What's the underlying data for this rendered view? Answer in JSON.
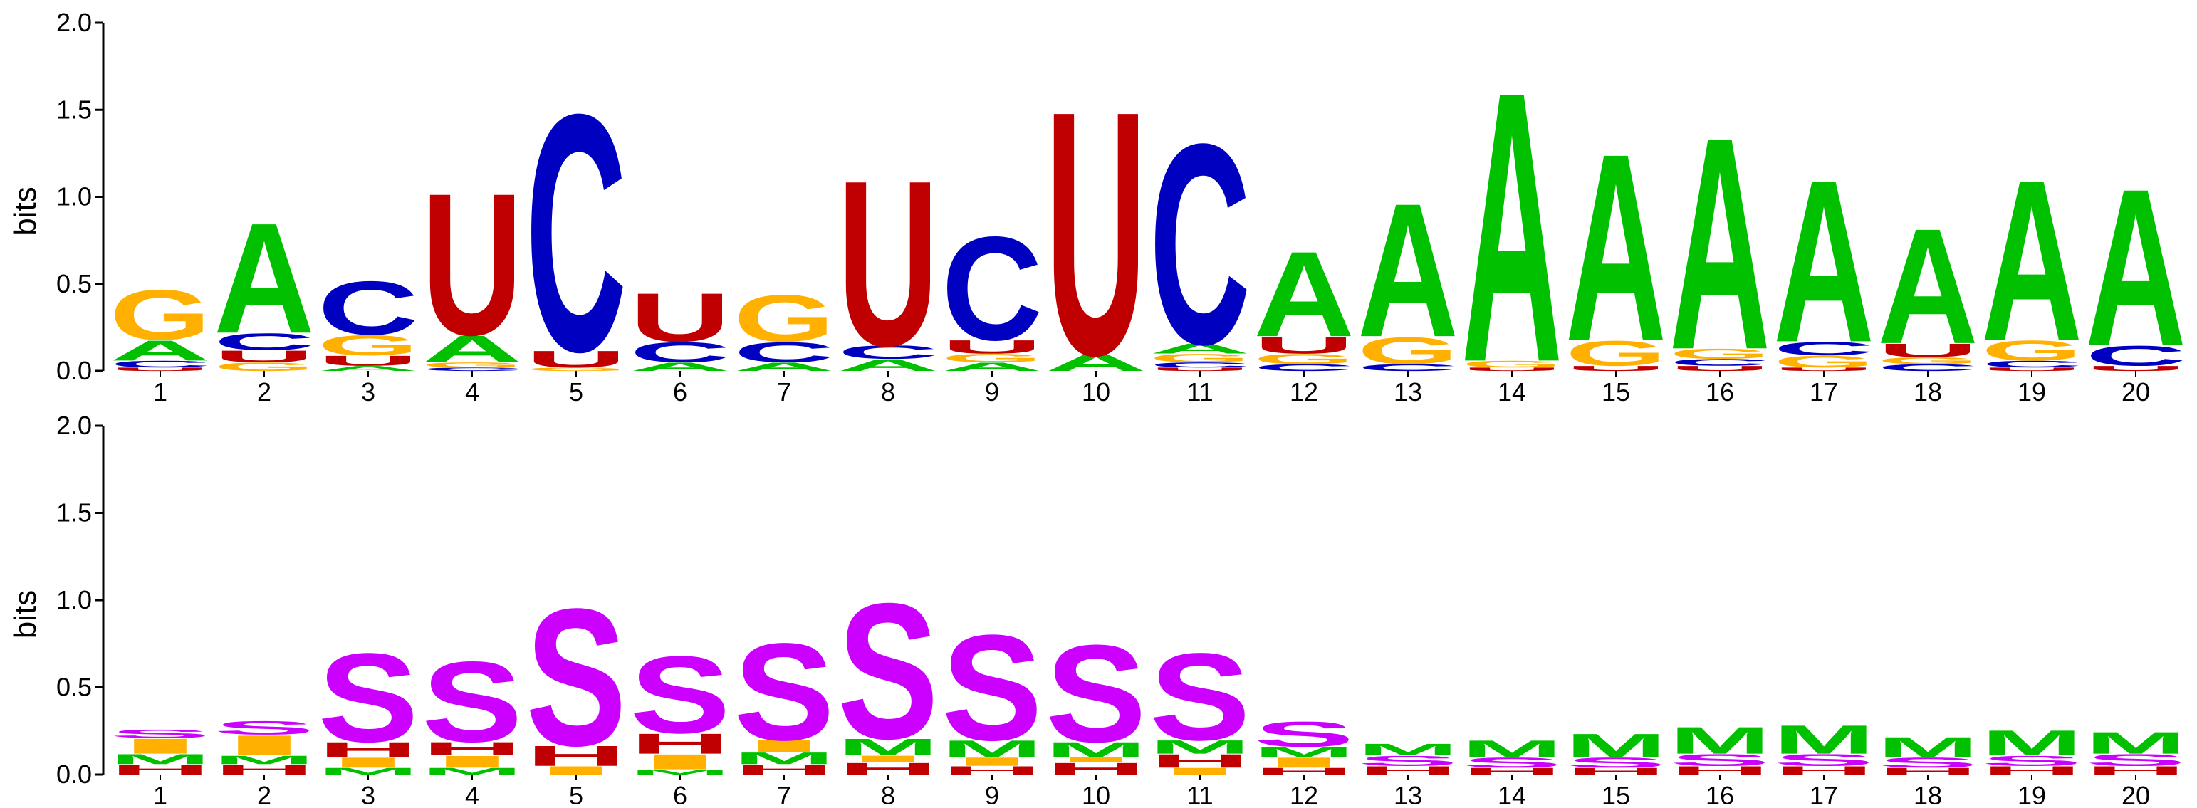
{
  "colors": {
    "A": "#00c000",
    "C": "#0000c0",
    "G": "#ffb000",
    "U": "#c00000",
    "S": "#cc00ff",
    "M": "#00c000",
    "I": "#ffb000",
    "H": "#c00000",
    "E": "#0000c0"
  },
  "chart_data": [
    {
      "type": "sequence-logo",
      "ylabel": "bits",
      "ylim": [
        0,
        2.0
      ],
      "yticks": [
        "0.0",
        "0.5",
        "1.0",
        "1.5",
        "2.0"
      ],
      "positions": [
        "1",
        "2",
        "3",
        "4",
        "5",
        "6",
        "7",
        "8",
        "9",
        "10",
        "11",
        "12",
        "13",
        "14",
        "15",
        "16",
        "17",
        "18",
        "19",
        "20"
      ],
      "stacks": [
        [
          [
            "U",
            0.02
          ],
          [
            "C",
            0.04
          ],
          [
            "A",
            0.12
          ],
          [
            "G",
            0.3
          ]
        ],
        [
          [
            "G",
            0.05
          ],
          [
            "U",
            0.07
          ],
          [
            "C",
            0.1
          ],
          [
            "A",
            0.66
          ]
        ],
        [
          [
            "A",
            0.03
          ],
          [
            "U",
            0.06
          ],
          [
            "G",
            0.12
          ],
          [
            "C",
            0.32
          ]
        ],
        [
          [
            "C",
            0.02
          ],
          [
            "G",
            0.03
          ],
          [
            "A",
            0.16
          ],
          [
            "U",
            0.85
          ]
        ],
        [
          [
            "G",
            0.02
          ],
          [
            "U",
            0.1
          ],
          [
            "C",
            1.42
          ]
        ],
        [
          [
            "A",
            0.05
          ],
          [
            "C",
            0.12
          ],
          [
            "U",
            0.29
          ]
        ],
        [
          [
            "A",
            0.05
          ],
          [
            "C",
            0.12
          ],
          [
            "G",
            0.28
          ]
        ],
        [
          [
            "A",
            0.07
          ],
          [
            "C",
            0.08
          ],
          [
            "U",
            0.99
          ]
        ],
        [
          [
            "A",
            0.05
          ],
          [
            "G",
            0.05
          ],
          [
            "U",
            0.08
          ],
          [
            "C",
            0.62
          ]
        ],
        [
          [
            "A",
            0.1
          ],
          [
            "U",
            1.46
          ]
        ],
        [
          [
            "U",
            0.02
          ],
          [
            "C",
            0.03
          ],
          [
            "G",
            0.05
          ],
          [
            "A",
            0.06
          ],
          [
            "C",
            1.2
          ]
        ],
        [
          [
            "C",
            0.04
          ],
          [
            "G",
            0.06
          ],
          [
            "U",
            0.1
          ],
          [
            "A",
            0.51
          ]
        ],
        [
          [
            "C",
            0.04
          ],
          [
            "G",
            0.16
          ],
          [
            "A",
            0.8
          ]
        ],
        [
          [
            "U",
            0.02
          ],
          [
            "G",
            0.04
          ],
          [
            "A",
            1.62
          ]
        ],
        [
          [
            "U",
            0.03
          ],
          [
            "G",
            0.15
          ],
          [
            "A",
            1.12
          ]
        ],
        [
          [
            "U",
            0.03
          ],
          [
            "C",
            0.04
          ],
          [
            "G",
            0.06
          ],
          [
            "A",
            1.27
          ]
        ],
        [
          [
            "U",
            0.02
          ],
          [
            "G",
            0.07
          ],
          [
            "C",
            0.08
          ],
          [
            "A",
            0.97
          ]
        ],
        [
          [
            "C",
            0.04
          ],
          [
            "G",
            0.04
          ],
          [
            "U",
            0.08
          ],
          [
            "A",
            0.69
          ]
        ],
        [
          [
            "U",
            0.02
          ],
          [
            "C",
            0.04
          ],
          [
            "G",
            0.12
          ],
          [
            "A",
            0.96
          ]
        ],
        [
          [
            "U",
            0.03
          ],
          [
            "C",
            0.12
          ],
          [
            "A",
            0.94
          ]
        ]
      ]
    },
    {
      "type": "sequence-logo",
      "ylabel": "bits",
      "ylim": [
        0,
        2.0
      ],
      "yticks": [
        "0.0",
        "0.5",
        "1.0",
        "1.5",
        "2.0"
      ],
      "positions": [
        "1",
        "2",
        "3",
        "4",
        "5",
        "6",
        "7",
        "8",
        "9",
        "10",
        "11",
        "12",
        "13",
        "14",
        "15",
        "16",
        "17",
        "18",
        "19",
        "20"
      ],
      "stacks": [
        [
          [
            "H",
            0.06
          ],
          [
            "M",
            0.06
          ],
          [
            "I",
            0.09
          ],
          [
            "S",
            0.05
          ]
        ],
        [
          [
            "H",
            0.06
          ],
          [
            "M",
            0.05
          ],
          [
            "I",
            0.12
          ],
          [
            "S",
            0.08
          ]
        ],
        [
          [
            "M",
            0.04
          ],
          [
            "I",
            0.06
          ],
          [
            "H",
            0.09
          ],
          [
            "S",
            0.53
          ]
        ],
        [
          [
            "M",
            0.04
          ],
          [
            "I",
            0.07
          ],
          [
            "H",
            0.08
          ],
          [
            "S",
            0.48
          ]
        ],
        [
          [
            "I",
            0.05
          ],
          [
            "H",
            0.12
          ],
          [
            "S",
            0.82
          ]
        ],
        [
          [
            "M",
            0.03
          ],
          [
            "I",
            0.09
          ],
          [
            "H",
            0.12
          ],
          [
            "S",
            0.46
          ]
        ],
        [
          [
            "H",
            0.06
          ],
          [
            "M",
            0.07
          ],
          [
            "I",
            0.07
          ],
          [
            "S",
            0.58
          ]
        ],
        [
          [
            "H",
            0.07
          ],
          [
            "I",
            0.04
          ],
          [
            "M",
            0.1
          ],
          [
            "S",
            0.81
          ]
        ],
        [
          [
            "H",
            0.05
          ],
          [
            "I",
            0.05
          ],
          [
            "M",
            0.1
          ],
          [
            "S",
            0.63
          ]
        ],
        [
          [
            "H",
            0.07
          ],
          [
            "I",
            0.03
          ],
          [
            "M",
            0.09
          ],
          [
            "S",
            0.58
          ]
        ],
        [
          [
            "I",
            0.04
          ],
          [
            "H",
            0.08
          ],
          [
            "M",
            0.08
          ],
          [
            "S",
            0.52
          ]
        ],
        [
          [
            "H",
            0.04
          ],
          [
            "I",
            0.06
          ],
          [
            "M",
            0.06
          ],
          [
            "S",
            0.15
          ]
        ],
        [
          [
            "H",
            0.05
          ],
          [
            "S",
            0.06
          ],
          [
            "M",
            0.07
          ]
        ],
        [
          [
            "H",
            0.04
          ],
          [
            "S",
            0.06
          ],
          [
            "M",
            0.1
          ]
        ],
        [
          [
            "H",
            0.04
          ],
          [
            "S",
            0.06
          ],
          [
            "M",
            0.14
          ]
        ],
        [
          [
            "H",
            0.05
          ],
          [
            "S",
            0.07
          ],
          [
            "M",
            0.16
          ]
        ],
        [
          [
            "H",
            0.05
          ],
          [
            "S",
            0.07
          ],
          [
            "M",
            0.17
          ]
        ],
        [
          [
            "H",
            0.04
          ],
          [
            "S",
            0.06
          ],
          [
            "M",
            0.12
          ]
        ],
        [
          [
            "H",
            0.05
          ],
          [
            "S",
            0.06
          ],
          [
            "M",
            0.15
          ]
        ],
        [
          [
            "H",
            0.05
          ],
          [
            "S",
            0.07
          ],
          [
            "M",
            0.13
          ]
        ]
      ]
    }
  ]
}
